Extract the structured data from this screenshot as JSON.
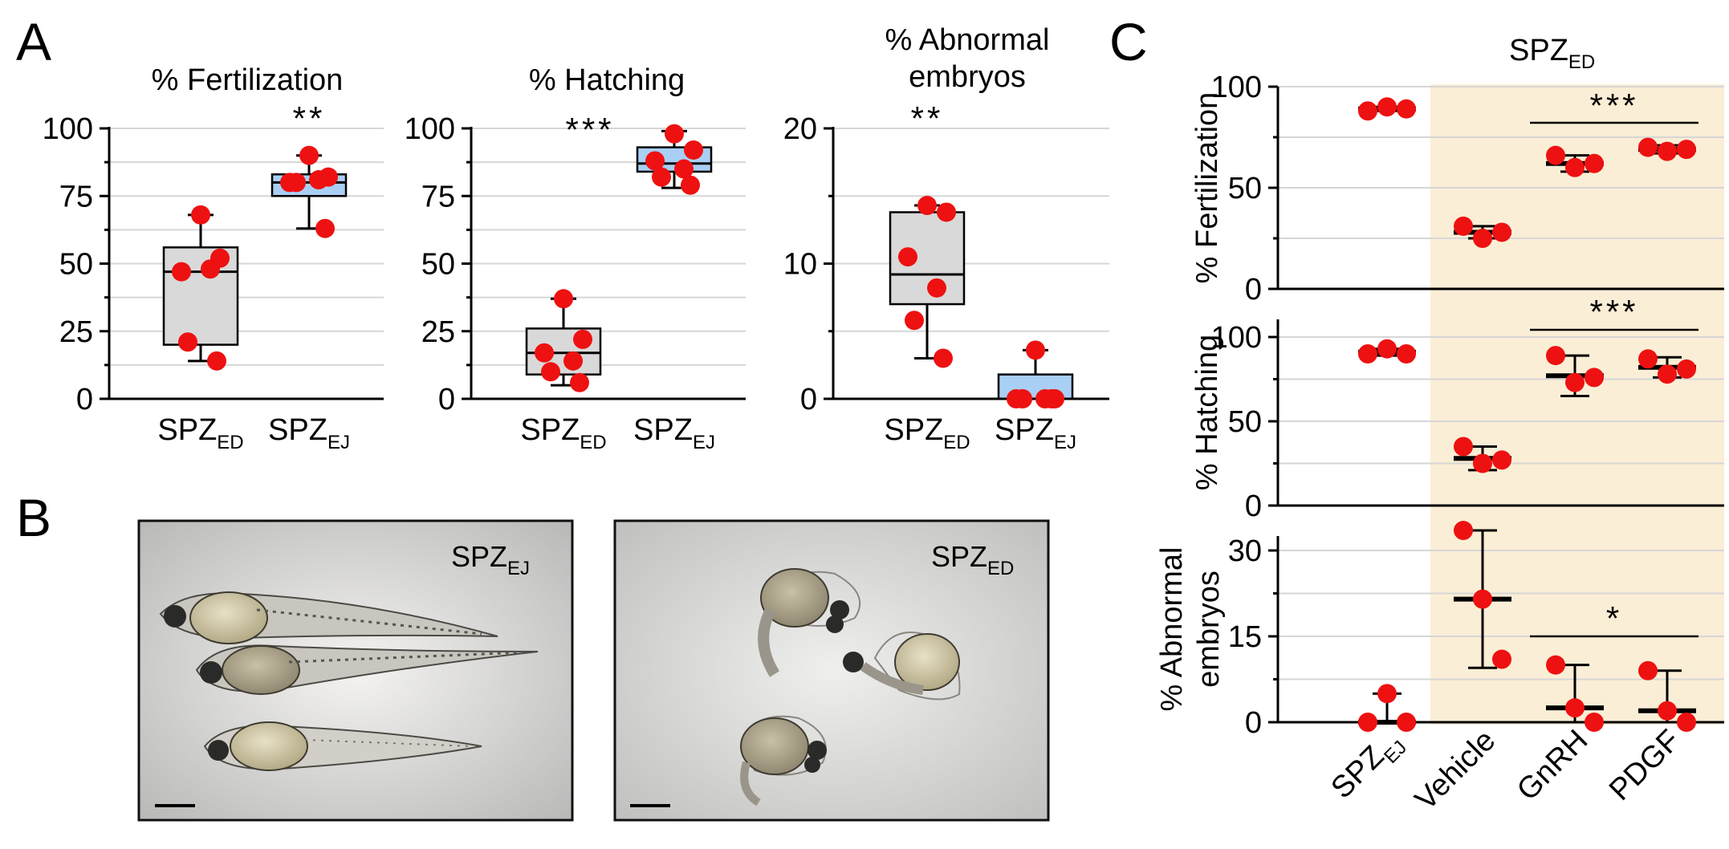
{
  "panel_labels": {
    "a": "A",
    "b": "B",
    "c": "C"
  },
  "colors": {
    "ed_box": "#d9d9d9",
    "ej_box": "#a9cff5",
    "point": "#ee1111",
    "bg_panel_c": "#fbeed6",
    "grid": "#d6d6d6"
  },
  "images": {
    "ej_label": {
      "main": "SPZ",
      "sub": "EJ"
    },
    "ed_label": {
      "main": "SPZ",
      "sub": "ED"
    }
  },
  "panel_c_header": {
    "main": "SPZ",
    "sub": "ED"
  },
  "chart_data": [
    {
      "type": "box",
      "title": "% Fertilization",
      "categories": [
        {
          "main": "SPZ",
          "sub": "ED"
        },
        {
          "main": "SPZ",
          "sub": "EJ"
        }
      ],
      "yticks": [
        0,
        25,
        50,
        75,
        100
      ],
      "ylim": [
        0,
        100
      ],
      "boxes": [
        {
          "min": 14,
          "q1": 20,
          "median": 47,
          "q3": 56,
          "max": 68,
          "points": [
            68,
            52,
            47,
            48,
            21,
            14
          ]
        },
        {
          "min": 63,
          "q1": 75,
          "median": 80,
          "q3": 83,
          "max": 90,
          "points": [
            90,
            82,
            80,
            81,
            80,
            63
          ]
        }
      ],
      "significance": [
        "",
        "**"
      ]
    },
    {
      "type": "box",
      "title": "% Hatching",
      "categories": [
        {
          "main": "SPZ",
          "sub": "ED"
        },
        {
          "main": "SPZ",
          "sub": "EJ"
        }
      ],
      "yticks": [
        0,
        25,
        50,
        75,
        100
      ],
      "ylim": [
        0,
        100
      ],
      "boxes": [
        {
          "min": 5,
          "q1": 9,
          "median": 17,
          "q3": 26,
          "max": 37,
          "points": [
            37,
            22,
            17,
            14,
            10,
            6
          ]
        },
        {
          "min": 78,
          "q1": 84,
          "median": 87,
          "q3": 93,
          "max": 99,
          "points": [
            98,
            92,
            88,
            85,
            82,
            79
          ]
        }
      ],
      "significance": [
        "",
        "***"
      ]
    },
    {
      "type": "box",
      "title": "% Abnormal embryos",
      "title_lines": [
        "% Abnormal",
        "embryos"
      ],
      "categories": [
        {
          "main": "SPZ",
          "sub": "ED"
        },
        {
          "main": "SPZ",
          "sub": "EJ"
        }
      ],
      "yticks": [
        0,
        10,
        20
      ],
      "ylim": [
        0,
        20
      ],
      "boxes": [
        {
          "min": 3,
          "q1": 7,
          "median": 9.2,
          "q3": 13.8,
          "max": 14.3,
          "points": [
            14.3,
            13.8,
            10.5,
            8.2,
            5.8,
            3
          ]
        },
        {
          "min": 0,
          "q1": 0,
          "median": 0,
          "q3": 1.8,
          "max": 3.6,
          "points": [
            3.6,
            0,
            0,
            0,
            0,
            0
          ]
        }
      ],
      "significance": [
        "**",
        ""
      ]
    },
    {
      "type": "scatter",
      "ylabel": "% Fertilization",
      "categories": [
        {
          "main": "SPZ",
          "sub": "EJ"
        },
        {
          "main": "Vehicle",
          "sub": ""
        },
        {
          "main": "GnRH",
          "sub": ""
        },
        {
          "main": "PDGF",
          "sub": ""
        }
      ],
      "yticks": [
        0,
        50,
        100
      ],
      "ylim": [
        0,
        100
      ],
      "groups": [
        {
          "mean": 89,
          "err": 1,
          "points": [
            88,
            90,
            89
          ]
        },
        {
          "mean": 28,
          "err": 3,
          "points": [
            31,
            25,
            28
          ]
        },
        {
          "mean": 62,
          "err": 4,
          "points": [
            66,
            60,
            62
          ]
        },
        {
          "mean": 69,
          "err": 2,
          "points": [
            70,
            68,
            69
          ]
        }
      ],
      "significance": "***"
    },
    {
      "type": "scatter",
      "ylabel": "% Hatching",
      "categories": [
        {
          "main": "SPZ",
          "sub": "EJ"
        },
        {
          "main": "Vehicle",
          "sub": ""
        },
        {
          "main": "GnRH",
          "sub": ""
        },
        {
          "main": "PDGF",
          "sub": ""
        }
      ],
      "yticks": [
        0,
        50,
        100
      ],
      "ylim": [
        0,
        100
      ],
      "groups": [
        {
          "mean": 91,
          "err": 2,
          "points": [
            90,
            93,
            90
          ]
        },
        {
          "mean": 28,
          "err": 7,
          "points": [
            35,
            25,
            27
          ]
        },
        {
          "mean": 77,
          "err": 12,
          "points": [
            89,
            73,
            76
          ]
        },
        {
          "mean": 82,
          "err": 6,
          "points": [
            87,
            78,
            81
          ]
        }
      ],
      "significance": "***"
    },
    {
      "type": "scatter",
      "ylabel": "% Abnormal embryos",
      "ylabel_lines": [
        "% Abnormal",
        "embryos"
      ],
      "categories": [
        {
          "main": "SPZ",
          "sub": "EJ"
        },
        {
          "main": "Vehicle",
          "sub": ""
        },
        {
          "main": "GnRH",
          "sub": ""
        },
        {
          "main": "PDGF",
          "sub": ""
        }
      ],
      "yticks": [
        0,
        15,
        30
      ],
      "ylim": [
        0,
        35
      ],
      "groups": [
        {
          "mean": 0,
          "err": 5,
          "points": [
            0,
            5,
            0
          ]
        },
        {
          "mean": 21.5,
          "err": 12,
          "points": [
            33.5,
            21.5,
            11
          ]
        },
        {
          "mean": 2.5,
          "err": 7.5,
          "points": [
            10,
            2.5,
            0
          ]
        },
        {
          "mean": 2,
          "err": 7,
          "points": [
            9,
            2,
            0
          ]
        }
      ],
      "significance": "*"
    }
  ]
}
